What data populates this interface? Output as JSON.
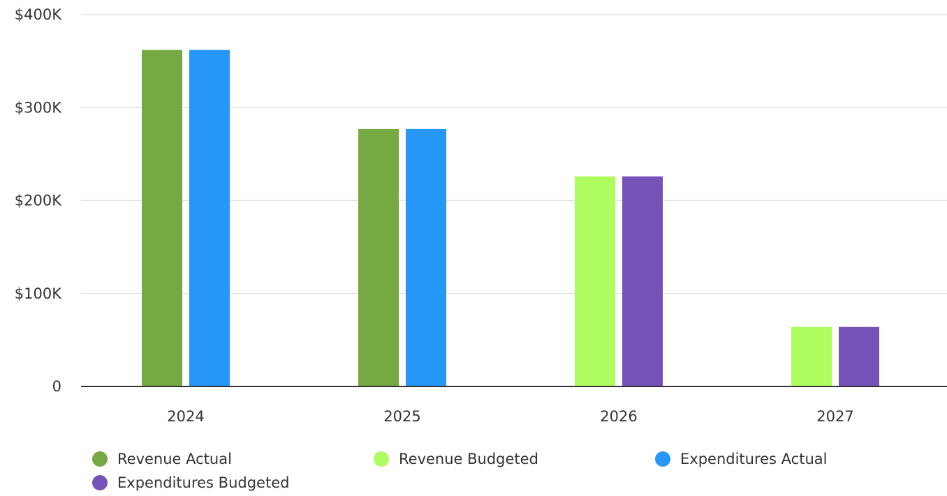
{
  "chart_data": {
    "type": "bar",
    "categories": [
      "2024",
      "2025",
      "2026",
      "2027"
    ],
    "series": [
      {
        "name": "Revenue Actual",
        "color": "#76a943",
        "values": [
          362000,
          277000,
          null,
          null
        ]
      },
      {
        "name": "Revenue Budgeted",
        "color": "#aefc5f",
        "values": [
          null,
          null,
          226000,
          64000
        ]
      },
      {
        "name": "Expenditures Actual",
        "color": "#2696f9",
        "values": [
          362000,
          277000,
          null,
          null
        ]
      },
      {
        "name": "Expenditures Budgeted",
        "color": "#7452b7",
        "values": [
          null,
          null,
          226000,
          64000
        ]
      }
    ],
    "ylim": [
      0,
      400000
    ],
    "yticks": [
      {
        "value": 0,
        "label": "0"
      },
      {
        "value": 100000,
        "label": "$100K"
      },
      {
        "value": 200000,
        "label": "$200K"
      },
      {
        "value": 300000,
        "label": "$300K"
      },
      {
        "value": 400000,
        "label": "$400K"
      }
    ],
    "grid": true,
    "legend_position": "bottom"
  }
}
